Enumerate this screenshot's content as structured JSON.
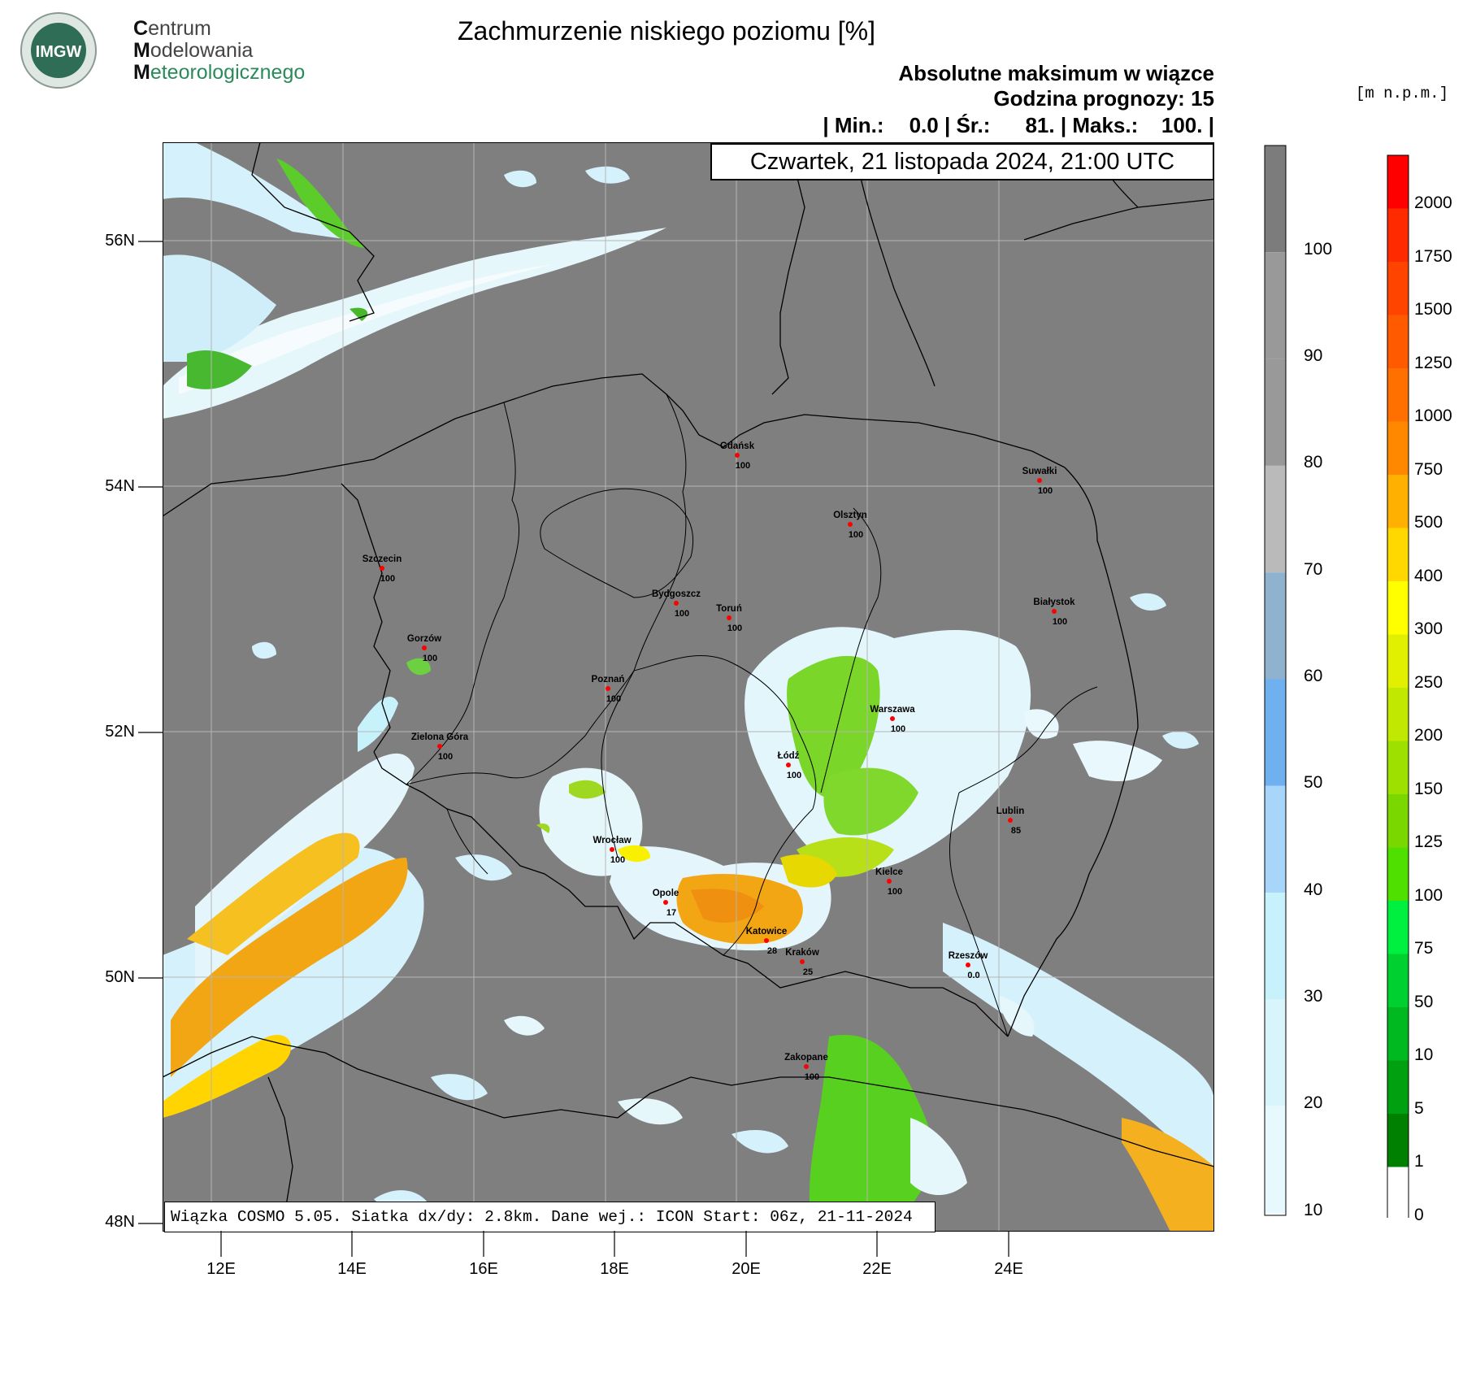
{
  "logo": {
    "badge_text": "IMGW",
    "line1_initial": "C",
    "line1_rest": "entrum",
    "line2_initial": "M",
    "line2_rest": "odelowania",
    "line3_initial": "M",
    "line3_rest": "eteorologicznego"
  },
  "header": {
    "title": "Zachmurzenie niskiego poziomu [%]",
    "subtitle": "Absolutne maksimum w wiązce",
    "forecast_hour": "Godzina prognozy: 15",
    "stats": {
      "min_label": "| Min.:",
      "min_value": "0.0",
      "avg_label": "| Śr.:",
      "avg_value": "81.",
      "max_label": "| Maks.:",
      "max_value": "100.",
      "end": "|"
    },
    "date": "Czwartek, 21 listopada 2024, 21:00 UTC"
  },
  "unit_label": "[m n.p.m.]",
  "footer": "Wiązka COSMO 5.05. Siatka dx/dy: 2.8km. Dane wej.: ICON Start: 06z, 21-11-2024",
  "axes": {
    "lat_labels": [
      "56N",
      "54N",
      "52N",
      "50N",
      "48N"
    ],
    "lon_labels": [
      "12E",
      "14E",
      "16E",
      "18E",
      "20E",
      "22E",
      "24E"
    ]
  },
  "cloud_scale": {
    "labels": [
      "100",
      "90",
      "80",
      "70",
      "60",
      "50",
      "40",
      "30",
      "20",
      "10"
    ],
    "colors": [
      "#7c7c7c",
      "#999999",
      "#bababa",
      "#8fb3cf",
      "#6fb0f0",
      "#a8d6fa",
      "#c8f2fb",
      "#d8f5fb",
      "#e8f9fd",
      "#f5fcff"
    ]
  },
  "height_scale": {
    "labels": [
      "2000",
      "1750",
      "1500",
      "1250",
      "1000",
      "750",
      "500",
      "400",
      "300",
      "250",
      "200",
      "150",
      "125",
      "100",
      "75",
      "50",
      "10",
      "5",
      "1",
      "0"
    ],
    "colors": [
      "#ff0000",
      "#ff2a00",
      "#ff4400",
      "#ff5a00",
      "#ff7000",
      "#ff8800",
      "#ffb000",
      "#ffd800",
      "#ffff00",
      "#e0f000",
      "#c0e800",
      "#9ee000",
      "#7ad800",
      "#50e000",
      "#00f040",
      "#00d030",
      "#00b820",
      "#00a010",
      "#008000",
      "#ffffff"
    ]
  },
  "cities": [
    {
      "name": "Gdańsk",
      "value": "100"
    },
    {
      "name": "Suwałki",
      "value": "100"
    },
    {
      "name": "Olsztyn",
      "value": "100"
    },
    {
      "name": "Szczecin",
      "value": "100"
    },
    {
      "name": "Bydgoszcz",
      "value": "100"
    },
    {
      "name": "Toruń",
      "value": "100"
    },
    {
      "name": "Białystok",
      "value": "100"
    },
    {
      "name": "Gorzów",
      "value": "100"
    },
    {
      "name": "Poznań",
      "value": "100"
    },
    {
      "name": "Warszawa",
      "value": "100"
    },
    {
      "name": "Zielona Góra",
      "value": "100"
    },
    {
      "name": "Łódź",
      "value": "100"
    },
    {
      "name": "Lublin",
      "value": "85"
    },
    {
      "name": "Wrocław",
      "value": "100"
    },
    {
      "name": "Kielce",
      "value": "100"
    },
    {
      "name": "Opole",
      "value": "17"
    },
    {
      "name": "Katowice",
      "value": "28"
    },
    {
      "name": "Kraków",
      "value": "25"
    },
    {
      "name": "Rzeszów",
      "value": "0.0"
    },
    {
      "name": "Zakopane",
      "value": "100"
    }
  ],
  "colors": {
    "overcast": "#7f7f7f",
    "clear": "#f4fbfd",
    "light": "#d5f1fb",
    "low_green": "#58d020",
    "yellow_green": "#b4e010",
    "orange": "#f4a010",
    "border": "#000000",
    "city_dot": "#ff0000"
  }
}
